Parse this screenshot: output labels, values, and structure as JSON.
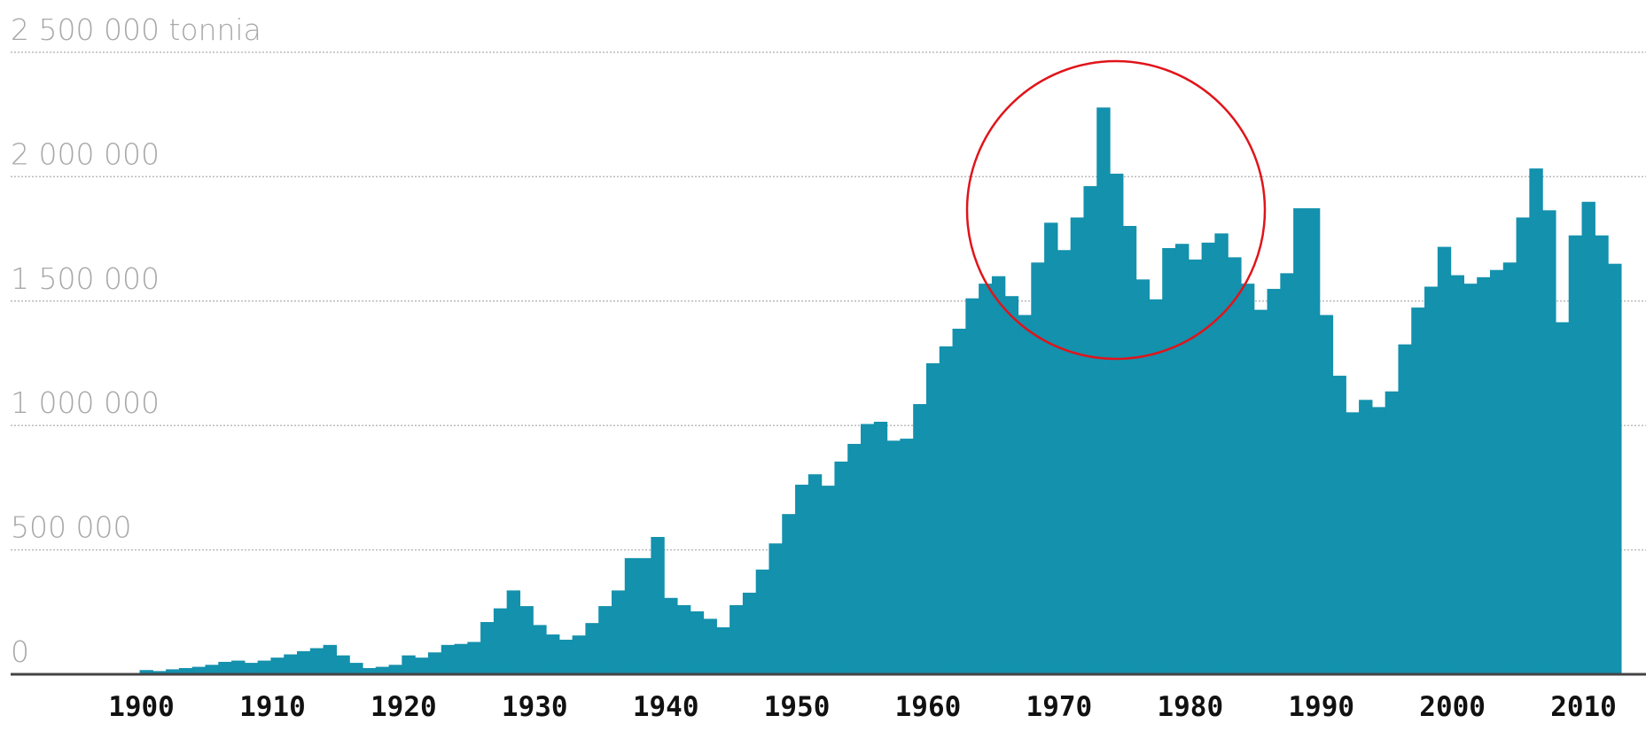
{
  "chart_data": {
    "type": "bar",
    "x": [
      1900,
      1901,
      1902,
      1903,
      1904,
      1905,
      1906,
      1907,
      1908,
      1909,
      1910,
      1911,
      1912,
      1913,
      1914,
      1915,
      1916,
      1917,
      1918,
      1919,
      1920,
      1921,
      1922,
      1923,
      1924,
      1925,
      1926,
      1927,
      1928,
      1929,
      1930,
      1931,
      1932,
      1933,
      1934,
      1935,
      1936,
      1937,
      1938,
      1939,
      1940,
      1941,
      1942,
      1943,
      1944,
      1945,
      1946,
      1947,
      1948,
      1949,
      1950,
      1951,
      1952,
      1953,
      1954,
      1955,
      1956,
      1957,
      1958,
      1959,
      1960,
      1961,
      1962,
      1963,
      1964,
      1965,
      1966,
      1967,
      1968,
      1969,
      1970,
      1971,
      1972,
      1973,
      1974,
      1975,
      1976,
      1977,
      1978,
      1979,
      1980,
      1981,
      1982,
      1983,
      1984,
      1985,
      1986,
      1987,
      1988,
      1989,
      1990,
      1991,
      1992,
      1993,
      1994,
      1995,
      1996,
      1997,
      1998,
      1999,
      2000,
      2001,
      2002,
      2003,
      2004,
      2005,
      2006,
      2007,
      2008,
      2009,
      2010,
      2011,
      2012
    ],
    "values": [
      17000,
      13000,
      20000,
      25000,
      30000,
      38000,
      50000,
      55000,
      46000,
      55000,
      67000,
      80000,
      93000,
      105000,
      118000,
      76000,
      46000,
      25000,
      30000,
      38000,
      76000,
      67000,
      88000,
      118000,
      122000,
      130000,
      210000,
      265000,
      337000,
      274000,
      198000,
      160000,
      139000,
      156000,
      206000,
      274000,
      337000,
      467000,
      467000,
      552000,
      307000,
      278000,
      253000,
      223000,
      189000,
      278000,
      328000,
      421000,
      526000,
      644000,
      762000,
      804000,
      758000,
      855000,
      926000,
      1006000,
      1015000,
      939000,
      947000,
      1086000,
      1250000,
      1318000,
      1389000,
      1511000,
      1570000,
      1600000,
      1520000,
      1444000,
      1655000,
      1815000,
      1705000,
      1836000,
      1962000,
      2278000,
      2012000,
      1802000,
      1587000,
      1507000,
      1713000,
      1730000,
      1667000,
      1735000,
      1772000,
      1676000,
      1570000,
      1465000,
      1549000,
      1612000,
      1873000,
      1873000,
      1444000,
      1200000,
      1053000,
      1103000,
      1074000,
      1137000,
      1326000,
      1474000,
      1558000,
      1718000,
      1604000,
      1570000,
      1596000,
      1625000,
      1655000,
      1836000,
      2033000,
      1865000,
      1415000,
      1764000,
      1899000,
      1764000,
      1650000
    ],
    "color": "#1391ad",
    "xlim": [
      1889.35,
      2014.9
    ],
    "xticks": [
      1900,
      1910,
      1920,
      1930,
      1940,
      1950,
      1960,
      1970,
      1980,
      1990,
      2000,
      2010
    ],
    "ylim": [
      0,
      2500000
    ],
    "yticks": [
      0,
      {
        "value": 500000,
        "label": "500 000"
      },
      {
        "value": 1000000,
        "label": "1 000 000"
      },
      {
        "value": 1500000,
        "label": "1 500 000"
      },
      {
        "value": 2000000,
        "label": "2 000 000"
      },
      {
        "value": 2500000,
        "label": "2 500 000 tonnia"
      }
    ],
    "grid": true
  }
}
